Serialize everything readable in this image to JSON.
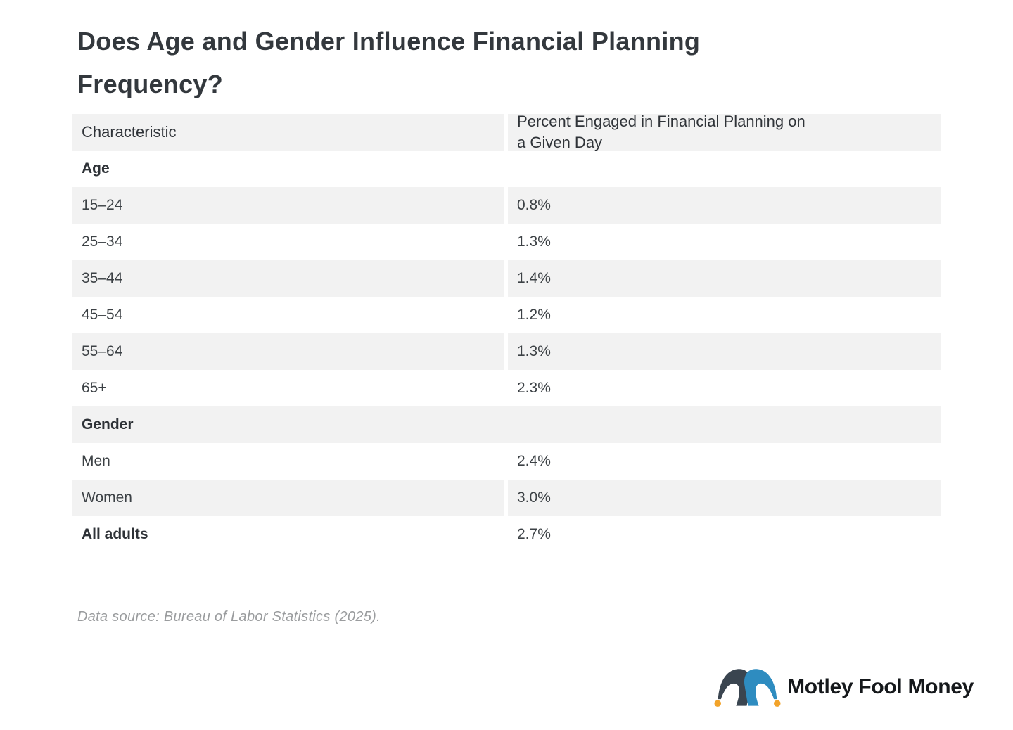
{
  "title": "Does Age and Gender Influence Financial Planning\nFrequency?",
  "table": {
    "columns": [
      "Characteristic",
      "Percent Engaged in Financial Planning on\na Given Day"
    ],
    "rows": [
      {
        "label": "Age",
        "value": null,
        "type": "section",
        "shaded": false
      },
      {
        "label": "15–24",
        "value": "0.8%",
        "type": "data",
        "shaded": true
      },
      {
        "label": "25–34",
        "value": "1.3%",
        "type": "data",
        "shaded": false
      },
      {
        "label": "35–44",
        "value": "1.4%",
        "type": "data",
        "shaded": true
      },
      {
        "label": "45–54",
        "value": "1.2%",
        "type": "data",
        "shaded": false
      },
      {
        "label": "55–64",
        "value": "1.3%",
        "type": "data",
        "shaded": true
      },
      {
        "label": "65+",
        "value": "2.3%",
        "type": "data",
        "shaded": false
      },
      {
        "label": "Gender",
        "value": null,
        "type": "section",
        "shaded": true
      },
      {
        "label": "Men",
        "value": "2.4%",
        "type": "data",
        "shaded": false
      },
      {
        "label": "Women",
        "value": "3.0%",
        "type": "data",
        "shaded": true
      },
      {
        "label": "All adults",
        "value": "2.7%",
        "type": "data",
        "shaded": false,
        "bold_label": true
      }
    ]
  },
  "source_note": "Data source: Bureau of Labor Statistics (2025).",
  "logo": {
    "text": "Motley Fool Money",
    "icon": "jester-hat-icon"
  },
  "colors": {
    "row_shade": "#F2F2F2",
    "title_text": "#33383D",
    "body_text": "#3C4145",
    "source_text": "#9A9C9E",
    "logo_text": "#15181B",
    "hat_dark": "#3A4550",
    "hat_blue": "#2E8CC0",
    "hat_bell": "#F2A32A"
  },
  "chart_data": {
    "type": "table",
    "title": "Does Age and Gender Influence Financial Planning Frequency?",
    "columns": [
      "Characteristic",
      "Percent Engaged in Financial Planning on a Given Day"
    ],
    "unit": "%",
    "sections": [
      {
        "name": "Age",
        "rows": [
          [
            "15–24",
            0.8
          ],
          [
            "25–34",
            1.3
          ],
          [
            "35–44",
            1.4
          ],
          [
            "45–54",
            1.2
          ],
          [
            "55–64",
            1.3
          ],
          [
            "65+",
            2.3
          ]
        ]
      },
      {
        "name": "Gender",
        "rows": [
          [
            "Men",
            2.4
          ],
          [
            "Women",
            3.0
          ]
        ]
      }
    ],
    "total_row": [
      "All adults",
      2.7
    ],
    "source": "Data source: Bureau of Labor Statistics (2025).",
    "grid": "alternating-row-shading",
    "legend": "none"
  }
}
